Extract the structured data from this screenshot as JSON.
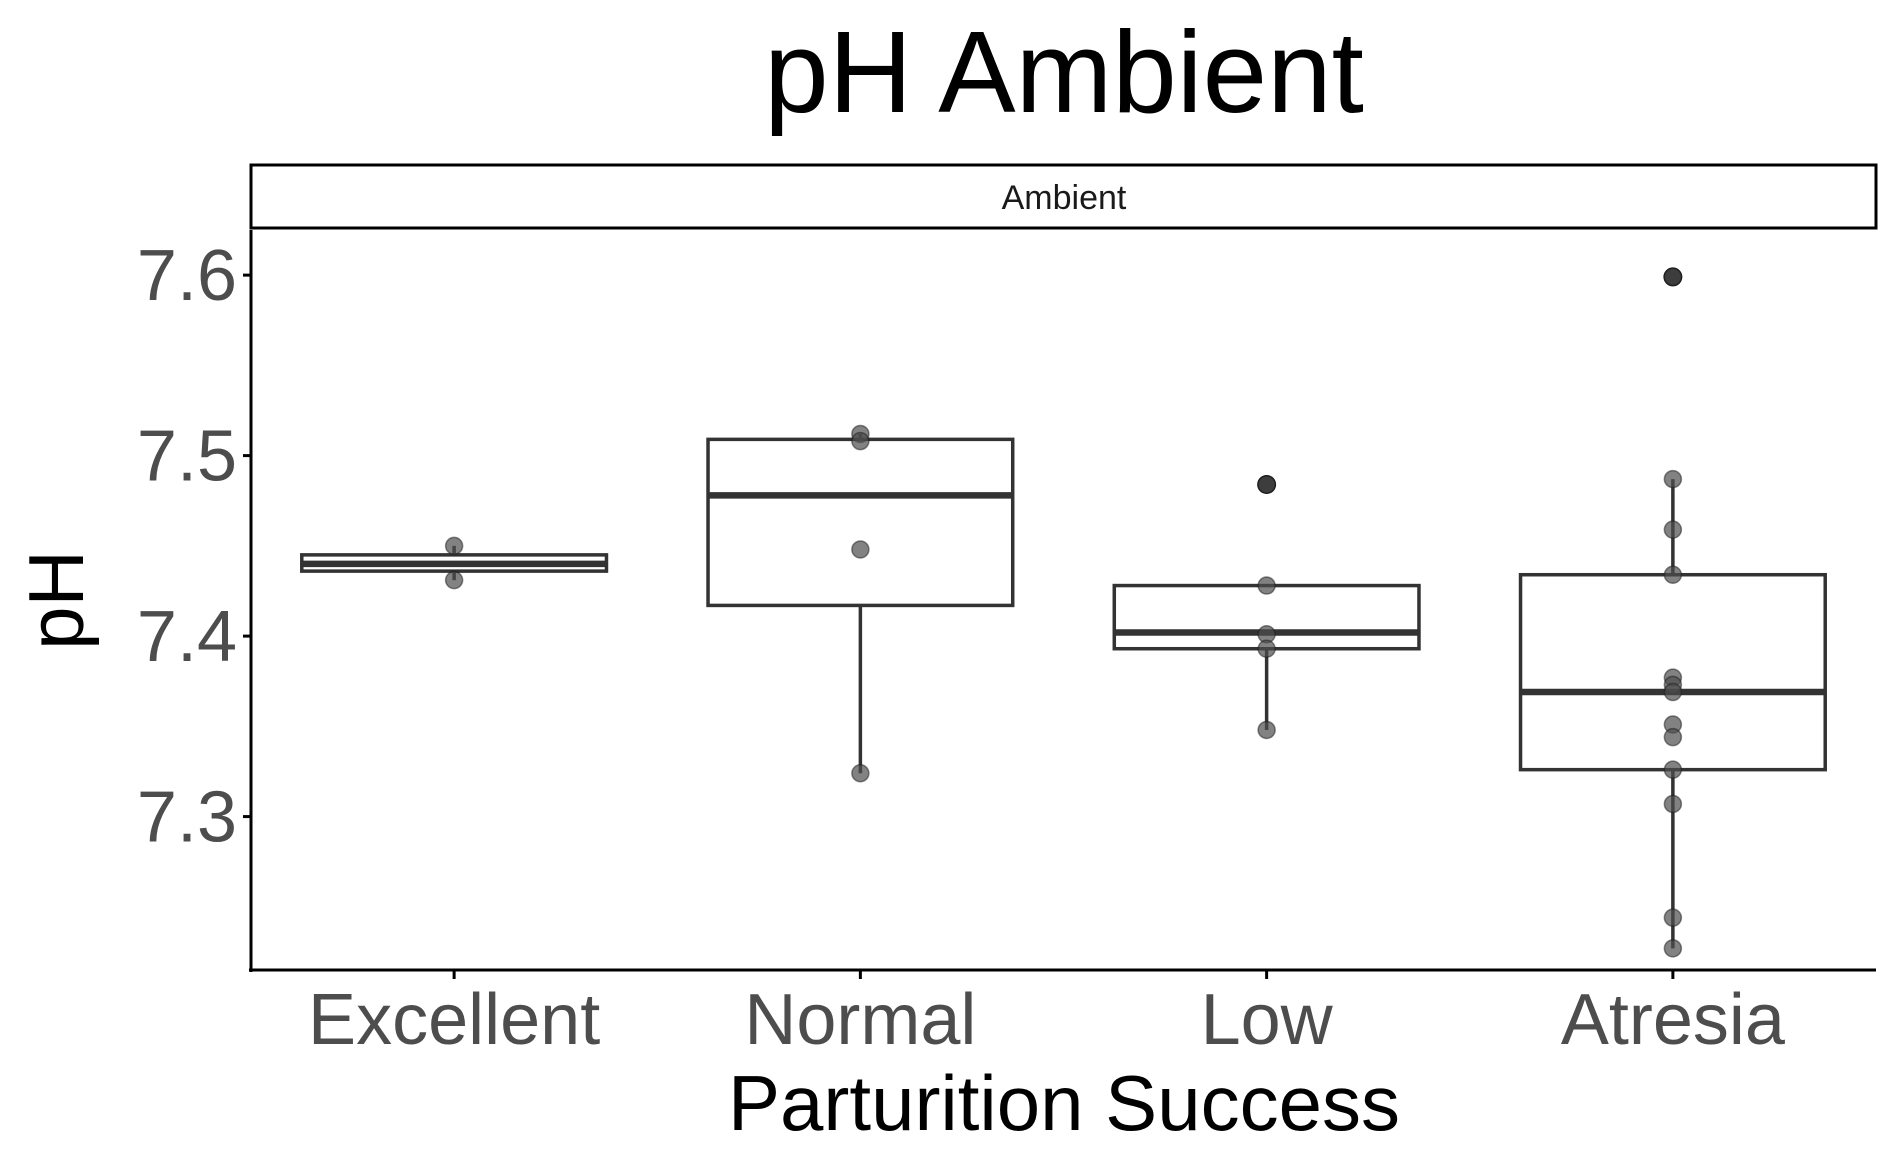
{
  "chart_data": {
    "type": "box",
    "title": "pH Ambient",
    "facet_label": "Ambient",
    "xlabel": "Parturition Success",
    "ylabel": "pH",
    "ylim": [
      7.215,
      7.625
    ],
    "yticks": [
      7.3,
      7.4,
      7.5,
      7.6
    ],
    "ytick_labels": [
      "7.3",
      "7.4",
      "7.5",
      "7.6"
    ],
    "grid": false,
    "categories": [
      "Excellent",
      "Normal",
      "Low",
      "Atresia"
    ],
    "boxes": [
      {
        "category": "Excellent",
        "q1": 7.436,
        "median": 7.44,
        "q3": 7.445,
        "whisker_low": 7.431,
        "whisker_high": 7.45,
        "outliers": []
      },
      {
        "category": "Normal",
        "q1": 7.417,
        "median": 7.478,
        "q3": 7.509,
        "whisker_low": 7.324,
        "whisker_high": 7.512,
        "outliers": []
      },
      {
        "category": "Low",
        "q1": 7.393,
        "median": 7.402,
        "q3": 7.428,
        "whisker_low": 7.348,
        "whisker_high": 7.428,
        "outliers": [
          7.484
        ]
      },
      {
        "category": "Atresia",
        "q1": 7.326,
        "median": 7.369,
        "q3": 7.434,
        "whisker_low": 7.227,
        "whisker_high": 7.487,
        "outliers": [
          7.599
        ]
      }
    ],
    "points": [
      {
        "category": "Excellent",
        "values": [
          7.45,
          7.431
        ]
      },
      {
        "category": "Normal",
        "values": [
          7.512,
          7.508,
          7.448,
          7.324
        ]
      },
      {
        "category": "Low",
        "values": [
          7.484,
          7.428,
          7.401,
          7.393,
          7.348
        ]
      },
      {
        "category": "Atresia",
        "values": [
          7.599,
          7.487,
          7.459,
          7.434,
          7.377,
          7.373,
          7.369,
          7.351,
          7.344,
          7.326,
          7.307,
          7.244,
          7.227
        ]
      }
    ],
    "colors": {
      "box_line": "#333333",
      "point": "#4d4d4d",
      "outlier": "#1a1a1a",
      "axis": "#000000",
      "tick_label": "#4d4d4d"
    }
  }
}
